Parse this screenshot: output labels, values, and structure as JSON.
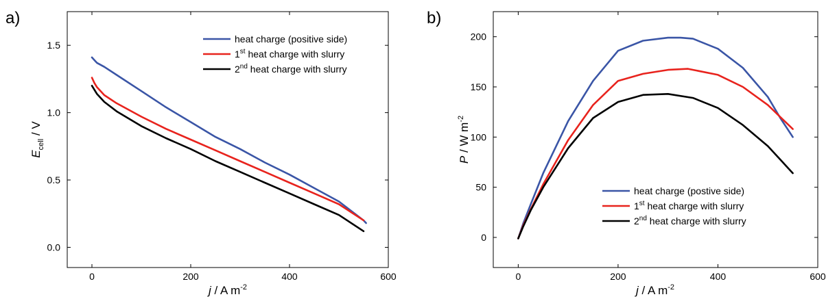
{
  "chart_data": [
    {
      "type": "line",
      "panel_label": "a)",
      "xlabel_var": "j",
      "xlabel_unit": " / A m",
      "xlabel_exp": "-2",
      "ylabel_var": "E",
      "ylabel_sub": "cell",
      "ylabel_unit": " / V",
      "xlim": [
        -50,
        600
      ],
      "ylim": [
        -0.15,
        1.75
      ],
      "xticks": [
        0,
        200,
        400,
        600
      ],
      "yticks": [
        0.0,
        0.5,
        1.0,
        1.5
      ],
      "xtick_labels": [
        "0",
        "200",
        "400",
        "600"
      ],
      "ytick_labels": [
        "0.0",
        "0.5",
        "1.0",
        "1.5"
      ],
      "legend_position": "top-right",
      "series": [
        {
          "name": "heat charge (positive side)",
          "legend_parts": [
            "heat charge (positive side)",
            "",
            ""
          ],
          "color": "#3a55a6",
          "x": [
            0,
            5,
            10,
            25,
            50,
            100,
            150,
            200,
            250,
            300,
            350,
            400,
            450,
            500,
            550,
            555
          ],
          "y": [
            1.41,
            1.39,
            1.37,
            1.34,
            1.28,
            1.16,
            1.04,
            0.93,
            0.82,
            0.73,
            0.63,
            0.54,
            0.44,
            0.34,
            0.2,
            0.18
          ]
        },
        {
          "name": "1st heat charge with slurry",
          "legend_parts": [
            "1",
            "st",
            " heat charge with slurry"
          ],
          "color": "#e8231d",
          "x": [
            0,
            5,
            10,
            25,
            50,
            100,
            150,
            200,
            250,
            300,
            350,
            400,
            450,
            500,
            550
          ],
          "y": [
            1.26,
            1.22,
            1.19,
            1.13,
            1.07,
            0.97,
            0.88,
            0.8,
            0.72,
            0.64,
            0.56,
            0.48,
            0.4,
            0.32,
            0.2
          ]
        },
        {
          "name": "2nd heat charge with slurry",
          "legend_parts": [
            "2",
            "nd",
            " heat charge with slurry"
          ],
          "color": "#000000",
          "x": [
            0,
            5,
            10,
            25,
            50,
            100,
            150,
            200,
            250,
            300,
            350,
            400,
            450,
            500,
            550
          ],
          "y": [
            1.2,
            1.17,
            1.14,
            1.08,
            1.01,
            0.9,
            0.81,
            0.73,
            0.64,
            0.56,
            0.48,
            0.4,
            0.32,
            0.24,
            0.12
          ]
        }
      ]
    },
    {
      "type": "line",
      "panel_label": "b)",
      "xlabel_var": "j",
      "xlabel_unit": " / A m",
      "xlabel_exp": "-2",
      "ylabel_var": "P",
      "ylabel_unit": " / W m",
      "ylabel_exp": "-2",
      "xlim": [
        -50,
        600
      ],
      "ylim": [
        -30,
        225
      ],
      "xticks": [
        0,
        200,
        400,
        600
      ],
      "yticks": [
        0,
        50,
        100,
        150,
        200
      ],
      "xtick_labels": [
        "0",
        "200",
        "400",
        "600"
      ],
      "ytick_labels": [
        "0",
        "50",
        "100",
        "150",
        "200"
      ],
      "legend_position": "bottom-right",
      "series": [
        {
          "name": "heat charge (postive side)",
          "legend_parts": [
            "heat charge (postive side)",
            "",
            ""
          ],
          "color": "#3a55a6",
          "x": [
            0,
            10,
            25,
            50,
            100,
            150,
            200,
            250,
            300,
            325,
            350,
            400,
            450,
            500,
            525,
            550
          ],
          "y": [
            -1,
            14,
            33,
            64,
            116,
            156,
            186,
            196,
            199,
            199,
            198,
            188,
            169,
            140,
            119,
            100
          ]
        },
        {
          "name": "1st heat charge with slurry",
          "legend_parts": [
            "1",
            "st",
            " heat charge with slurry"
          ],
          "color": "#e8231d",
          "x": [
            0,
            10,
            25,
            50,
            100,
            150,
            200,
            250,
            300,
            340,
            400,
            450,
            500,
            550
          ],
          "y": [
            -1,
            12,
            28,
            53,
            97,
            132,
            156,
            163,
            167,
            168,
            162,
            150,
            132,
            108
          ]
        },
        {
          "name": "2nd heat charge with slurry",
          "legend_parts": [
            "2",
            "nd",
            " heat charge with slurry"
          ],
          "color": "#000000",
          "x": [
            0,
            10,
            25,
            50,
            100,
            150,
            200,
            250,
            300,
            350,
            400,
            450,
            500,
            550
          ],
          "y": [
            -1,
            11,
            27,
            50,
            89,
            119,
            135,
            142,
            143,
            139,
            129,
            112,
            91,
            64
          ]
        }
      ]
    }
  ]
}
